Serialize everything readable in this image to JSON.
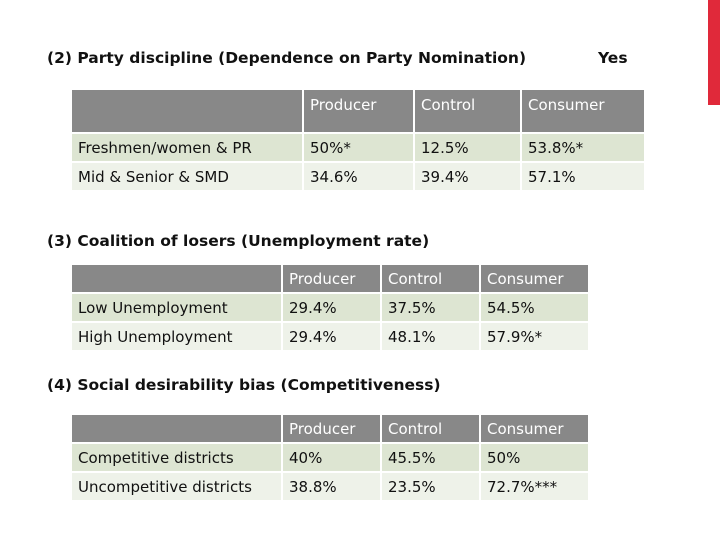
{
  "sections": [
    {
      "heading": "(2) Party discipline (Dependence on Party Nomination)",
      "heading_suffix": "Yes",
      "columns": [
        "",
        "Producer",
        "Control",
        "Consumer"
      ],
      "rows": [
        {
          "label": "Freshmen/women & PR",
          "values": [
            "50%*",
            "12.5%",
            "53.8%*"
          ]
        },
        {
          "label": "Mid & Senior & SMD",
          "values": [
            "34.6%",
            "39.4%",
            "57.1%"
          ]
        }
      ]
    },
    {
      "heading": "(3) Coalition of losers (Unemployment rate)",
      "columns": [
        "",
        "Producer",
        "Control",
        "Consumer"
      ],
      "rows": [
        {
          "label": "Low Unemployment",
          "values": [
            "29.4%",
            "37.5%",
            "54.5%"
          ]
        },
        {
          "label": "High Unemployment",
          "values": [
            "29.4%",
            "48.1%",
            "57.9%*"
          ]
        }
      ]
    },
    {
      "heading": "(4) Social desirability bias (Competitiveness)",
      "columns": [
        "",
        "Producer",
        "Control",
        "Consumer"
      ],
      "rows": [
        {
          "label": "Competitive districts",
          "values": [
            "40%",
            "45.5%",
            "50%"
          ]
        },
        {
          "label": "Uncompetitive districts",
          "values": [
            "38.8%",
            "23.5%",
            "72.7%***"
          ]
        }
      ]
    }
  ],
  "colors": {
    "accent": "#e0293a",
    "header_bg": "#888888",
    "row_odd": "#dde5d2",
    "row_even": "#eef2e9"
  }
}
